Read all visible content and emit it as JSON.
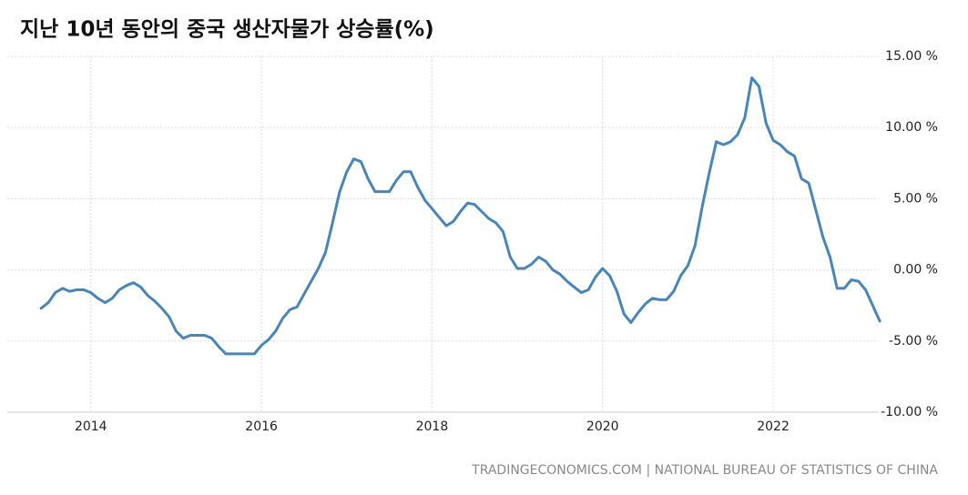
{
  "chart_data": {
    "type": "line",
    "title": "지난 10년 동안의 중국 생산자물가 상승률(%)",
    "source": "TRADINGECONOMICS.COM | NATIONAL BUREAU OF STATISTICS OF CHINA",
    "x": [
      2013.417,
      2013.5,
      2013.583,
      2013.667,
      2013.75,
      2013.833,
      2013.917,
      2014.0,
      2014.083,
      2014.167,
      2014.25,
      2014.333,
      2014.417,
      2014.5,
      2014.583,
      2014.667,
      2014.75,
      2014.833,
      2014.917,
      2015.0,
      2015.083,
      2015.167,
      2015.25,
      2015.333,
      2015.417,
      2015.5,
      2015.583,
      2015.667,
      2015.75,
      2015.833,
      2015.917,
      2016.0,
      2016.083,
      2016.167,
      2016.25,
      2016.333,
      2016.417,
      2016.5,
      2016.583,
      2016.667,
      2016.75,
      2016.833,
      2016.917,
      2017.0,
      2017.083,
      2017.167,
      2017.25,
      2017.333,
      2017.417,
      2017.5,
      2017.583,
      2017.667,
      2017.75,
      2017.833,
      2017.917,
      2018.0,
      2018.083,
      2018.167,
      2018.25,
      2018.333,
      2018.417,
      2018.5,
      2018.583,
      2018.667,
      2018.75,
      2018.833,
      2018.917,
      2019.0,
      2019.083,
      2019.167,
      2019.25,
      2019.333,
      2019.417,
      2019.5,
      2019.583,
      2019.667,
      2019.75,
      2019.833,
      2019.917,
      2020.0,
      2020.083,
      2020.167,
      2020.25,
      2020.333,
      2020.417,
      2020.5,
      2020.583,
      2020.667,
      2020.75,
      2020.833,
      2020.917,
      2021.0,
      2021.083,
      2021.167,
      2021.25,
      2021.333,
      2021.417,
      2021.5,
      2021.583,
      2021.667,
      2021.75,
      2021.833,
      2021.917,
      2022.0,
      2022.083,
      2022.167,
      2022.25,
      2022.333,
      2022.417,
      2022.5,
      2022.583,
      2022.667,
      2022.75,
      2022.833,
      2022.917,
      2023.0,
      2023.083,
      2023.167,
      2023.25
    ],
    "series": [
      {
        "color": "#4a85b8",
        "values": [
          -2.7,
          -2.3,
          -1.6,
          -1.3,
          -1.5,
          -1.4,
          -1.4,
          -1.6,
          -2.0,
          -2.3,
          -2.0,
          -1.4,
          -1.1,
          -0.9,
          -1.2,
          -1.8,
          -2.2,
          -2.7,
          -3.3,
          -4.3,
          -4.8,
          -4.6,
          -4.6,
          -4.6,
          -4.8,
          -5.4,
          -5.9,
          -5.9,
          -5.9,
          -5.9,
          -5.9,
          -5.3,
          -4.9,
          -4.3,
          -3.4,
          -2.8,
          -2.6,
          -1.7,
          -0.8,
          0.1,
          1.2,
          3.3,
          5.5,
          6.9,
          7.8,
          7.6,
          6.4,
          5.5,
          5.5,
          5.5,
          6.3,
          6.9,
          6.9,
          5.8,
          4.9,
          4.3,
          3.7,
          3.1,
          3.4,
          4.1,
          4.7,
          4.6,
          4.1,
          3.6,
          3.3,
          2.7,
          0.9,
          0.1,
          0.1,
          0.4,
          0.9,
          0.6,
          0.0,
          -0.3,
          -0.8,
          -1.2,
          -1.6,
          -1.4,
          -0.5,
          0.1,
          -0.4,
          -1.5,
          -3.1,
          -3.7,
          -3.0,
          -2.4,
          -2.0,
          -2.1,
          -2.1,
          -1.5,
          -0.4,
          0.3,
          1.7,
          4.4,
          6.8,
          9.0,
          8.8,
          9.0,
          9.5,
          10.7,
          13.5,
          12.9,
          10.3,
          9.1,
          8.8,
          8.3,
          8.0,
          6.4,
          6.1,
          4.2,
          2.3,
          0.9,
          -1.3,
          -1.3,
          -0.7,
          -0.8,
          -1.4,
          -2.5,
          -3.6
        ]
      }
    ],
    "xlim": [
      2013.02,
      2023.27
    ],
    "xticks": [
      2014,
      2016,
      2018,
      2020,
      2022
    ],
    "ylim": [
      -10,
      15
    ],
    "yticks": [
      {
        "value": -10,
        "label": "-10.00 %"
      },
      {
        "value": -5,
        "label": "-5.00 %"
      },
      {
        "value": 0,
        "label": "0.00 %"
      },
      {
        "value": 5,
        "label": "5.00 %"
      },
      {
        "value": 10,
        "label": "10.00 %"
      },
      {
        "value": 15,
        "label": "15.00 %"
      }
    ],
    "grid": true
  }
}
